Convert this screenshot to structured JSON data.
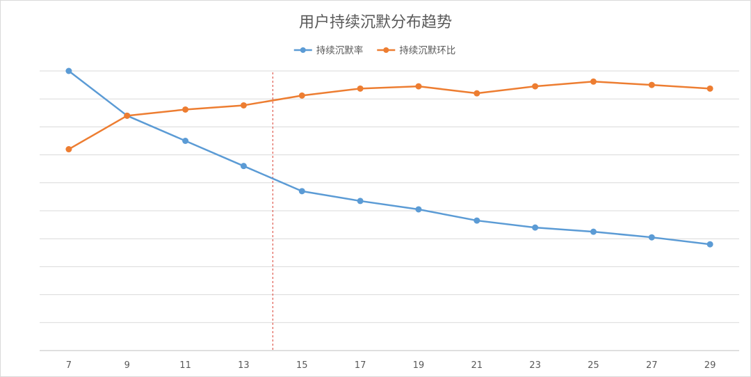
{
  "chart_data": {
    "type": "line",
    "title": "用户持续沉默分布趋势",
    "xlabel": "",
    "ylabel": "",
    "categories": [
      "7",
      "9",
      "11",
      "13",
      "15",
      "17",
      "19",
      "21",
      "23",
      "25",
      "27",
      "29"
    ],
    "ylim": [
      0,
      1
    ],
    "grid": true,
    "y_tick_labels_shown": false,
    "legend_position": "top-center",
    "series": [
      {
        "name": "持续沉默率",
        "color": "#5b9bd5",
        "values": [
          1.0,
          0.84,
          0.75,
          0.66,
          0.57,
          0.535,
          0.505,
          0.465,
          0.44,
          0.425,
          0.405,
          0.38
        ]
      },
      {
        "name": "持续沉默环比",
        "color": "#ed7d31",
        "values": [
          0.72,
          0.84,
          0.862,
          0.877,
          0.912,
          0.937,
          0.945,
          0.92,
          0.945,
          0.962,
          0.95,
          0.937
        ]
      }
    ],
    "reference_line": {
      "orientation": "vertical",
      "between_categories": [
        "13",
        "15"
      ],
      "color": "#e05a4f",
      "style": "dashed"
    }
  }
}
